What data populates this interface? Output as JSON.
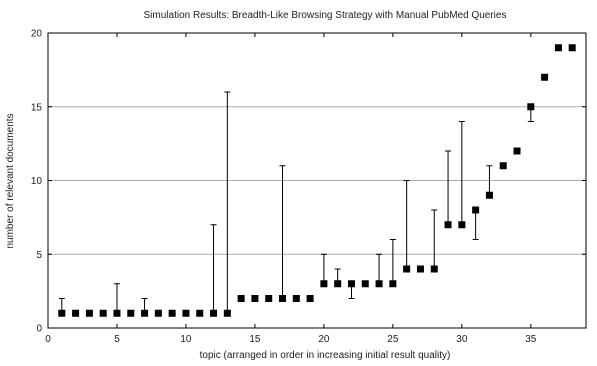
{
  "chart_data": {
    "type": "scatter",
    "title": "Simulation Results: Breadth-Like Browsing Strategy with Manual PubMed Queries",
    "xlabel": "topic (arranged in order in increasing initial result quality)",
    "ylabel": "number of relevant documents",
    "xlim": [
      0,
      39
    ],
    "ylim": [
      0,
      20
    ],
    "xticks": [
      0,
      5,
      10,
      15,
      20,
      25,
      30,
      35
    ],
    "yticks": [
      0,
      5,
      10,
      15,
      20
    ],
    "grid": "horizontal",
    "legend": "none",
    "colors": {
      "marker": "#000000",
      "gridline": "#aaaaaa",
      "axis": "#000000",
      "errorbar": "#000000"
    },
    "series": [
      {
        "x": [
          1,
          2,
          3,
          4,
          5,
          6,
          7,
          8,
          9,
          10,
          11,
          12,
          13,
          14,
          15,
          16,
          17,
          18,
          19,
          20,
          21,
          22,
          23,
          24,
          25,
          26,
          27,
          28,
          29,
          30,
          31,
          32,
          33,
          34,
          35,
          36,
          37,
          38
        ],
        "y": [
          1,
          1,
          1,
          1,
          1,
          1,
          1,
          1,
          1,
          1,
          1,
          1,
          1,
          2,
          2,
          2,
          2,
          2,
          2,
          3,
          3,
          3,
          3,
          3,
          3,
          4,
          4,
          4,
          7,
          7,
          8,
          9,
          11,
          12,
          15,
          17,
          19,
          19
        ],
        "y_low": [
          1,
          1,
          1,
          1,
          1,
          1,
          1,
          1,
          1,
          1,
          1,
          1,
          1,
          2,
          2,
          2,
          2,
          2,
          2,
          3,
          3,
          2,
          3,
          3,
          3,
          4,
          4,
          4,
          7,
          7,
          6,
          9,
          11,
          12,
          14,
          17,
          19,
          19
        ],
        "y_high": [
          2,
          1,
          1,
          1,
          3,
          1,
          2,
          1,
          1,
          1,
          1,
          7,
          16,
          2,
          2,
          2,
          11,
          2,
          2,
          5,
          4,
          3,
          3,
          5,
          6,
          10,
          4,
          8,
          12,
          14,
          8,
          11,
          11,
          12,
          15,
          17,
          19,
          19
        ]
      }
    ]
  }
}
